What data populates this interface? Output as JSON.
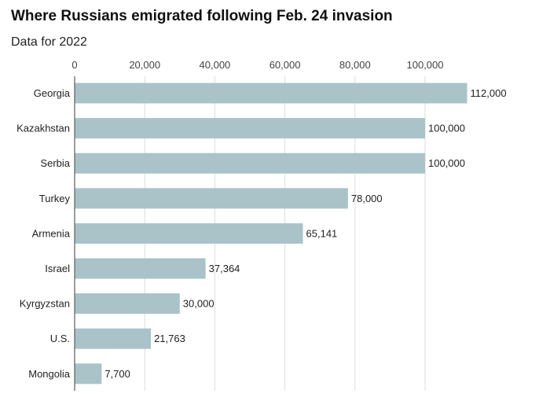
{
  "title": "Where Russians emigrated following Feb. 24 invasion",
  "subtitle": "Data for 2022",
  "colors": {
    "bar": "#a9c3c9",
    "grid": "#dddddd",
    "axis": "#666666"
  },
  "chart_data": {
    "type": "bar",
    "orientation": "horizontal",
    "title": "Where Russians emigrated following Feb. 24 invasion",
    "subtitle": "Data for 2022",
    "categories": [
      "Georgia",
      "Kazakhstan",
      "Serbia",
      "Turkey",
      "Armenia",
      "Israel",
      "Kyrgyzstan",
      "U.S.",
      "Mongolia"
    ],
    "values": [
      112000,
      100000,
      100000,
      78000,
      65141,
      37364,
      30000,
      21763,
      7700
    ],
    "value_labels": [
      "112,000",
      "100,000",
      "100,000",
      "78,000",
      "65,141",
      "37,364",
      "30,000",
      "21,763",
      "7,700"
    ],
    "x_ticks": [
      0,
      20000,
      40000,
      60000,
      80000,
      100000
    ],
    "x_tick_labels": [
      "0",
      "20,000",
      "40,000",
      "60,000",
      "80,000",
      "100,000"
    ],
    "xlim": [
      0,
      120000
    ],
    "grid": true,
    "xlabel": "",
    "ylabel": ""
  }
}
